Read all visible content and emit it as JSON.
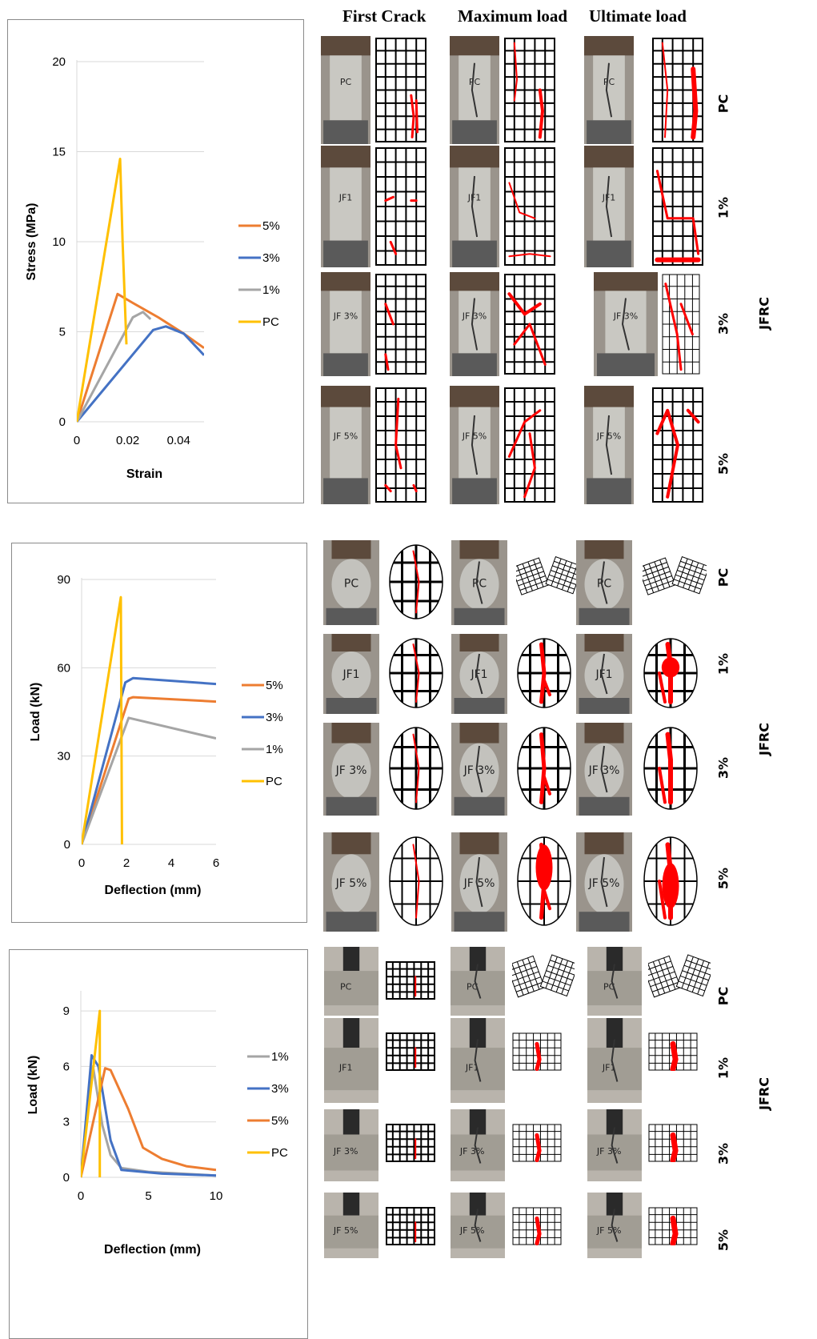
{
  "header": {
    "col1": "First Crack",
    "col2": "Maximum load",
    "col3": "Ultimate load"
  },
  "row_labels": {
    "pc": "PC",
    "p1": "1%",
    "p3": "3%",
    "p5": "5%",
    "group": "JFRC"
  },
  "specimen_marks": {
    "pc": "PC",
    "jf1": "JF1",
    "jf3": "JF 3%",
    "jf5": "JF 5%"
  },
  "colors": {
    "pc": "#FFC000",
    "p5": "#ED7D31",
    "p3": "#4472C4",
    "p1": "#A5A5A5",
    "crack": "#FF0000",
    "grid": "#D9D9D9"
  },
  "chart_data": [
    {
      "type": "line",
      "xlabel": "Strain",
      "ylabel": "Stress (MPa)",
      "xlim": [
        0,
        0.05
      ],
      "ylim": [
        0,
        20
      ],
      "xticks": [
        "0",
        "0.02",
        "0.04"
      ],
      "yticks": [
        "0",
        "5",
        "10",
        "15",
        "20"
      ],
      "legend_position": "right",
      "grid": true,
      "series": [
        {
          "name": "5%",
          "color": "#ED7D31",
          "x": [
            0,
            0.016,
            0.022,
            0.032,
            0.042,
            0.05
          ],
          "y": [
            0,
            7.1,
            6.6,
            5.8,
            4.9,
            4.1
          ]
        },
        {
          "name": "3%",
          "color": "#4472C4",
          "x": [
            0,
            0.03,
            0.035,
            0.042,
            0.05
          ],
          "y": [
            0,
            5.1,
            5.3,
            4.9,
            3.7
          ]
        },
        {
          "name": "1%",
          "color": "#A5A5A5",
          "x": [
            0,
            0.022,
            0.026,
            0.029
          ],
          "y": [
            0,
            5.8,
            6.1,
            5.7
          ]
        },
        {
          "name": "PC",
          "color": "#FFC000",
          "x": [
            0,
            0.017,
            0.018,
            0.0195
          ],
          "y": [
            0,
            14.6,
            10,
            4.3
          ]
        }
      ]
    },
    {
      "type": "line",
      "xlabel": "Deflection (mm)",
      "ylabel": "Load (kN)",
      "xlim": [
        0,
        6
      ],
      "ylim": [
        0,
        90
      ],
      "xticks": [
        "0",
        "2",
        "4",
        "6"
      ],
      "yticks": [
        "0",
        "30",
        "60",
        "90"
      ],
      "legend_position": "right",
      "grid": true,
      "series": [
        {
          "name": "5%",
          "color": "#ED7D31",
          "x": [
            0,
            2.1,
            2.3,
            6
          ],
          "y": [
            0,
            49.5,
            50,
            48.5
          ]
        },
        {
          "name": "3%",
          "color": "#4472C4",
          "x": [
            0,
            1.95,
            2.3,
            6
          ],
          "y": [
            0,
            55,
            56.5,
            54.5
          ]
        },
        {
          "name": "1%",
          "color": "#A5A5A5",
          "x": [
            0,
            2.1,
            6
          ],
          "y": [
            0,
            43,
            36
          ]
        },
        {
          "name": "PC",
          "color": "#FFC000",
          "x": [
            0,
            1.75,
            1.8,
            1.8
          ],
          "y": [
            0,
            84,
            2,
            0
          ]
        }
      ]
    },
    {
      "type": "line",
      "xlabel": "Deflection (mm)",
      "ylabel": "Load (kN)",
      "xlim": [
        0,
        10
      ],
      "ylim": [
        0,
        10
      ],
      "xticks": [
        "0",
        "5",
        "10"
      ],
      "yticks": [
        "0",
        "3",
        "6",
        "9"
      ],
      "legend_position": "right",
      "grid": true,
      "series": [
        {
          "name": "1%",
          "color": "#A5A5A5",
          "x": [
            0,
            0.9,
            1.6,
            2.2,
            3.0,
            5,
            10
          ],
          "y": [
            0,
            6.0,
            2.8,
            1.2,
            0.5,
            0.3,
            0.1
          ]
        },
        {
          "name": "3%",
          "color": "#4472C4",
          "x": [
            0,
            0.8,
            1.3,
            2.2,
            3.0,
            6,
            10
          ],
          "y": [
            0,
            6.6,
            6.0,
            2.0,
            0.4,
            0.2,
            0.1
          ]
        },
        {
          "name": "5%",
          "color": "#ED7D31",
          "x": [
            0,
            1.8,
            2.2,
            3.5,
            4.6,
            6,
            7.8,
            10
          ],
          "y": [
            0,
            5.9,
            5.8,
            3.7,
            1.6,
            1.0,
            0.6,
            0.4
          ]
        },
        {
          "name": "PC",
          "color": "#FFC000",
          "x": [
            0,
            1.4,
            1.4
          ],
          "y": [
            0,
            9.0,
            0
          ]
        }
      ]
    }
  ]
}
